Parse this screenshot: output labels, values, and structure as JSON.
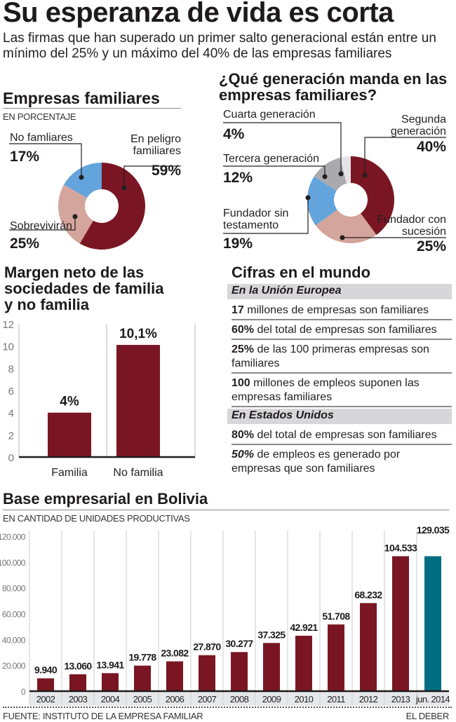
{
  "header": {
    "title": "Su esperanza de vida es corta",
    "subtitle": "Las firmas que han superado un primer salto generacional están entre un mínimo del 25% y un máximo del 40% de las empresas familiares"
  },
  "colors": {
    "maroon": "#7a1623",
    "rose": "#d4a59c",
    "blue": "#63a4dc",
    "gray": "#aaaaae",
    "lightgray": "#e3e4e8",
    "teal": "#006e80",
    "band": "#d7d7d9"
  },
  "chart_data": [
    {
      "type": "pie",
      "variant": "donut",
      "title": "Empresas familiares",
      "subtitle": "EN PORCENTAJE",
      "slices": [
        {
          "label": "En peligro familiares",
          "value": 59,
          "display": "59%",
          "color": "#7a1623"
        },
        {
          "label": "Sobrevivirán",
          "value": 25,
          "display": "25%",
          "color": "#d4a59c"
        },
        {
          "label": "No famliares",
          "value": 17,
          "display": "17%",
          "color": "#63a4dc"
        }
      ]
    },
    {
      "type": "pie",
      "variant": "donut",
      "title": "¿Qué generación manda en las empresas familiares?",
      "slices": [
        {
          "label": "Segunda generación",
          "value": 40,
          "display": "40%",
          "color": "#7a1623"
        },
        {
          "label": "Fundador con sucesión",
          "value": 25,
          "display": "25%",
          "color": "#d4a59c"
        },
        {
          "label": "Fundador sin testamento",
          "value": 19,
          "display": "19%",
          "color": "#63a4dc"
        },
        {
          "label": "Tercera generación",
          "value": 12,
          "display": "12%",
          "color": "#aaaaae"
        },
        {
          "label": "Cuarta generación",
          "value": 4,
          "display": "4%",
          "color": "#e3e4e8"
        }
      ]
    },
    {
      "type": "bar",
      "title": "Margen neto de las sociedades de familia y no familia",
      "categories": [
        "Familia",
        "No familia"
      ],
      "values": [
        4,
        10.1
      ],
      "data_labels": [
        "4%",
        "10,1%"
      ],
      "ylim": [
        0,
        12
      ],
      "yticks": [
        "0",
        "2",
        "4",
        "6",
        "8",
        "10",
        "12"
      ],
      "xlabel": "",
      "ylabel": ""
    },
    {
      "type": "bar",
      "title": "Base empresarial en Bolivia",
      "subtitle": "EN CANTIDAD DE UNIDADES PRODUCTIVAS",
      "categories": [
        "2002",
        "2003",
        "2004",
        "2005",
        "2006",
        "2007",
        "2008",
        "2009",
        "2010",
        "2011",
        "2012",
        "2013",
        "jun. 2014"
      ],
      "values": [
        9940,
        13060,
        13941,
        19778,
        23082,
        27870,
        30277,
        37325,
        42921,
        51708,
        68232,
        104533,
        129035
      ],
      "data_labels": [
        "9.940",
        "13.060",
        "13.941",
        "19.778",
        "23.082",
        "27.870",
        "30.277",
        "37.325",
        "42.921",
        "51.708",
        "68.232",
        "104.533",
        "129.035"
      ],
      "highlight_last": true,
      "ylim": [
        0,
        120000
      ],
      "yticks": [
        "0",
        "20.000",
        "40.000",
        "60.000",
        "80.000",
        "100.000",
        "120.000"
      ],
      "xlabel": "",
      "ylabel": ""
    }
  ],
  "cifras": {
    "title": "Cifras en el mundo",
    "groups": [
      {
        "heading": "En la Unión Europea",
        "items": [
          {
            "bold": "17",
            "text": " millones de empresas son familiares"
          },
          {
            "bold": "60%",
            "text": " del total de empresas son familiares"
          },
          {
            "bold": "25%",
            "text": " de las 100 primeras empresas son familiares"
          },
          {
            "bold": "100",
            "text": " millones de empleos suponen las empresas familiares"
          }
        ]
      },
      {
        "heading": "En Estados Unidos",
        "items": [
          {
            "bold": "80%",
            "text": " del total de empresas son familiares"
          },
          {
            "bold": "50%",
            "text": " de empleos es generado por empresas que son familiares"
          }
        ]
      }
    ]
  },
  "footer": {
    "source": "FUENTE: INSTITUTO DE LA EMPRESA FAMILIAR",
    "credit": "EL DEBER"
  }
}
